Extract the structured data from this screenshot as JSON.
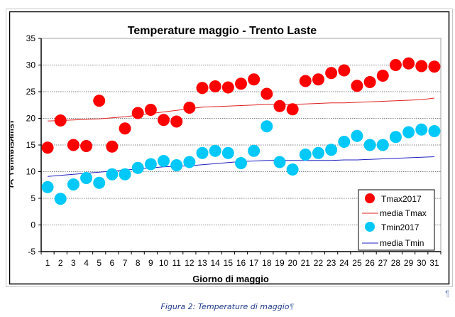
{
  "chart_data": {
    "type": "scatter",
    "title": "Temperature maggio - Trento Laste",
    "xlabel": "Giorno di maggio",
    "ylabel": "Temperatura (°C)",
    "ylim": [
      -5,
      35
    ],
    "yticks": [
      -5,
      0,
      5,
      10,
      15,
      20,
      25,
      30,
      35
    ],
    "x": [
      1,
      2,
      3,
      4,
      5,
      6,
      7,
      8,
      9,
      10,
      11,
      12,
      13,
      14,
      15,
      16,
      17,
      18,
      19,
      20,
      21,
      22,
      23,
      24,
      25,
      26,
      27,
      28,
      29,
      30,
      31
    ],
    "grid": "horizontal dotted",
    "legend_position": "bottom-right",
    "series": [
      {
        "name": "Tmax2017",
        "kind": "marker",
        "color": "#ff0000",
        "values": [
          14.5,
          19.6,
          15.0,
          14.8,
          23.3,
          14.7,
          18.1,
          21.0,
          21.6,
          19.7,
          19.4,
          22.0,
          25.7,
          26.0,
          25.8,
          26.5,
          27.3,
          24.6,
          22.3,
          21.7,
          27.0,
          27.3,
          28.5,
          29.0,
          26.1,
          26.8,
          28.0,
          30.0,
          30.3,
          29.8,
          29.7
        ]
      },
      {
        "name": "media Tmax",
        "kind": "line",
        "color": "#e02020",
        "values": [
          19.5,
          19.6,
          19.7,
          19.8,
          19.9,
          20.1,
          20.3,
          20.6,
          20.9,
          21.2,
          21.5,
          21.8,
          22.1,
          22.2,
          22.3,
          22.4,
          22.5,
          22.6,
          22.6,
          22.6,
          22.7,
          22.8,
          22.9,
          22.9,
          23.0,
          23.1,
          23.2,
          23.3,
          23.4,
          23.5,
          23.8
        ]
      },
      {
        "name": "Tmin2017",
        "kind": "marker",
        "color": "#00c8f8",
        "values": [
          7.1,
          4.9,
          7.6,
          8.8,
          7.9,
          9.5,
          9.5,
          10.7,
          11.4,
          12.0,
          11.2,
          11.8,
          13.5,
          13.9,
          13.5,
          11.6,
          13.9,
          18.5,
          11.8,
          10.4,
          13.2,
          13.5,
          14.1,
          15.6,
          16.7,
          15.0,
          15.0,
          16.5,
          17.4,
          17.9,
          17.6
        ]
      },
      {
        "name": "media Tmin",
        "kind": "line",
        "color": "#2020c0",
        "values": [
          9.1,
          9.3,
          9.5,
          9.7,
          9.9,
          10.1,
          10.3,
          10.5,
          10.7,
          10.9,
          11.0,
          11.1,
          11.3,
          11.5,
          11.7,
          11.9,
          12.0,
          12.1,
          12.1,
          12.1,
          12.1,
          12.1,
          12.1,
          12.2,
          12.2,
          12.3,
          12.4,
          12.5,
          12.6,
          12.7,
          12.8
        ]
      }
    ]
  },
  "caption": "Figura 2: Temperature di maggio",
  "pilcrow": "¶"
}
